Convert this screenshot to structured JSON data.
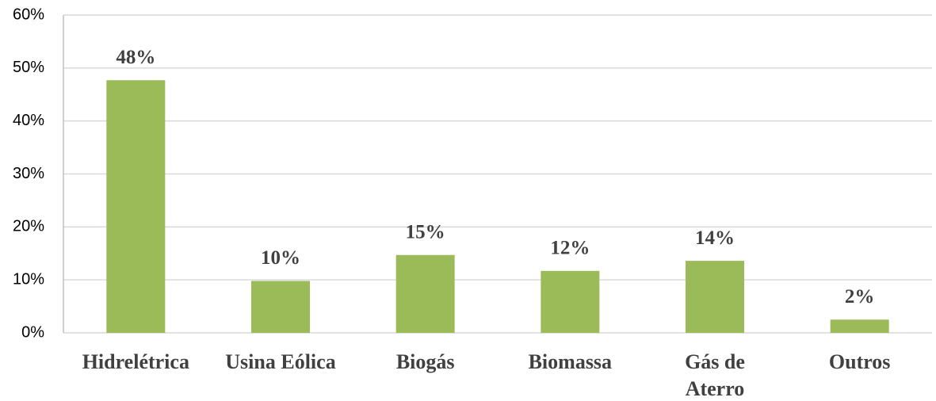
{
  "chart_data": {
    "type": "bar",
    "categories": [
      "Hidrelétrica",
      "Usina Eólica",
      "Biogás",
      "Biomassa",
      "Gás de\nAterro",
      "Outros"
    ],
    "values": [
      47.7,
      9.8,
      14.7,
      11.7,
      13.6,
      2.5
    ],
    "value_labels": [
      "48%",
      "10%",
      "15%",
      "12%",
      "14%",
      "2%"
    ],
    "color": "#9bbb59",
    "ylim": [
      0,
      60
    ],
    "yticks": [
      {
        "value": 0,
        "label": "0%"
      },
      {
        "value": 10,
        "label": "10%"
      },
      {
        "value": 20,
        "label": "20%"
      },
      {
        "value": 30,
        "label": "30%"
      },
      {
        "value": 40,
        "label": "40%"
      },
      {
        "value": 50,
        "label": "50%"
      },
      {
        "value": 60,
        "label": "60%"
      }
    ],
    "grid": true
  }
}
